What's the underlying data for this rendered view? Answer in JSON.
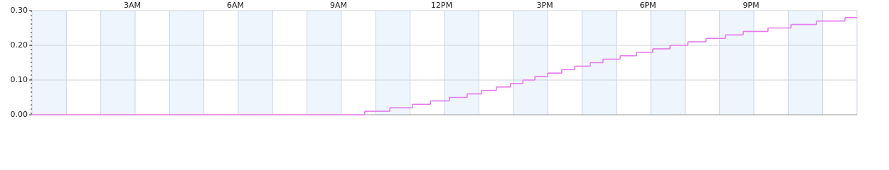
{
  "chart_data": {
    "type": "step",
    "x": [
      0,
      9.68,
      10.41,
      11.07,
      11.59,
      12.14,
      12.66,
      13.08,
      13.51,
      13.92,
      14.28,
      14.63,
      15.0,
      15.41,
      15.79,
      16.24,
      16.61,
      17.11,
      17.59,
      18.06,
      18.56,
      19.08,
      19.61,
      20.17,
      20.69,
      21.41,
      22.08,
      22.82,
      23.65,
      24
    ],
    "series": [
      {
        "color": "#e47ae8",
        "values": [
          0,
          0.01,
          0.02,
          0.03,
          0.04,
          0.05,
          0.06,
          0.07,
          0.08,
          0.09,
          0.1,
          0.11,
          0.12,
          0.13,
          0.14,
          0.15,
          0.16,
          0.17,
          0.18,
          0.19,
          0.2,
          0.21,
          0.22,
          0.23,
          0.24,
          0.25,
          0.26,
          0.27,
          0.28,
          0.28
        ]
      }
    ],
    "xlim": [
      0,
      24
    ],
    "xticks": [
      {
        "value": 3,
        "label": "3AM"
      },
      {
        "value": 6,
        "label": "6AM"
      },
      {
        "value": 9,
        "label": "9AM"
      },
      {
        "value": 12,
        "label": "12PM"
      },
      {
        "value": 15,
        "label": "3PM"
      },
      {
        "value": 18,
        "label": "6PM"
      },
      {
        "value": 21,
        "label": "9PM"
      }
    ],
    "ylim": [
      0,
      0.3
    ],
    "yticks": [
      {
        "value": 0,
        "label": "0.00"
      },
      {
        "value": 0.1,
        "label": "0.10"
      },
      {
        "value": 0.2,
        "label": "0.20"
      },
      {
        "value": 0.3,
        "label": "0.30"
      }
    ],
    "grid": true
  }
}
